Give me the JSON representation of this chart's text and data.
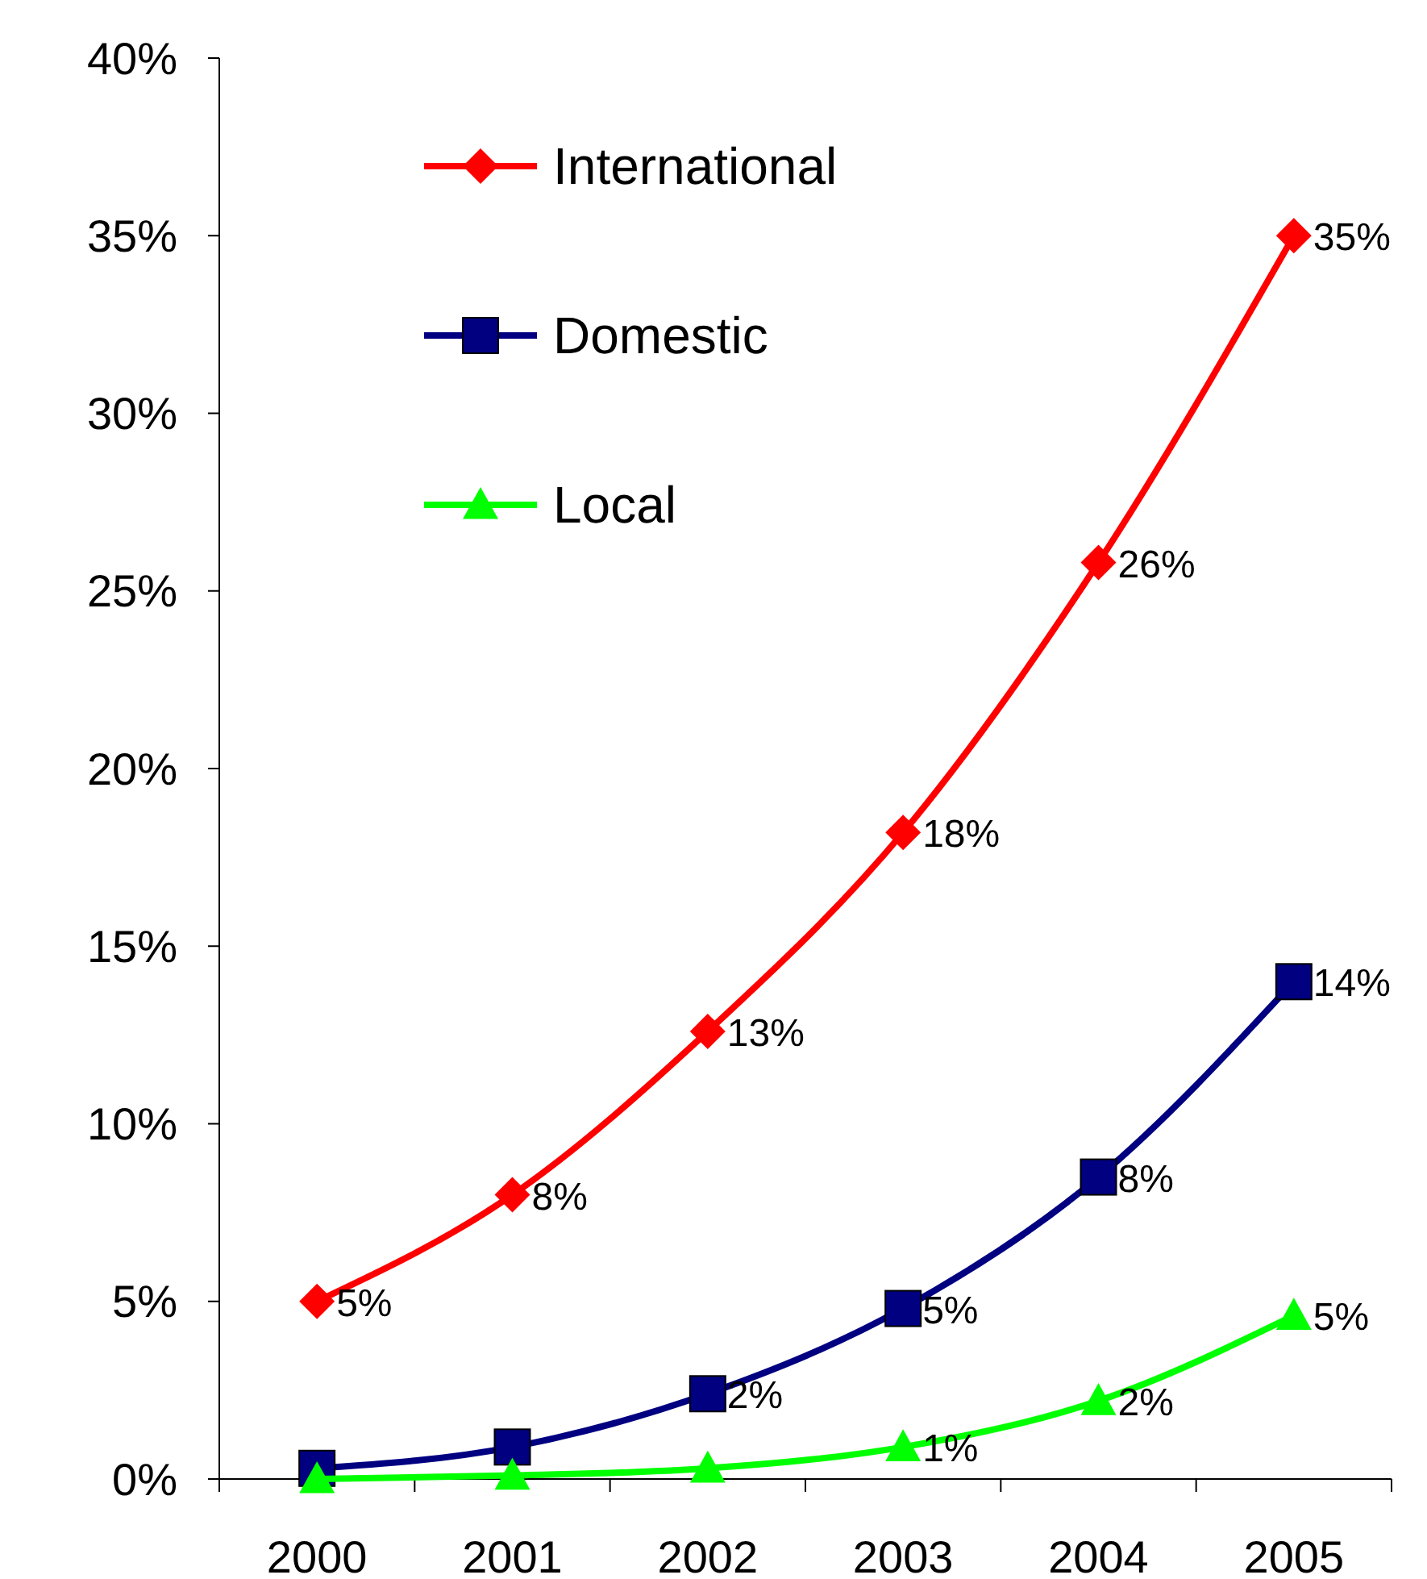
{
  "chart_data": {
    "type": "line",
    "categories": [
      "2000",
      "2001",
      "2002",
      "2003",
      "2004",
      "2005"
    ],
    "series": [
      {
        "name": "International",
        "color": "#ff0000",
        "marker": "diamond",
        "values": [
          5.0,
          8.0,
          12.6,
          18.2,
          25.8,
          35.0
        ],
        "value_labels": [
          "5%",
          "8%",
          "13%",
          "18%",
          "26%",
          "35%"
        ]
      },
      {
        "name": "Domestic",
        "color": "#000080",
        "marker": "square",
        "values": [
          0.3,
          0.9,
          2.4,
          4.8,
          8.5,
          14.0
        ],
        "value_labels": [
          null,
          null,
          "2%",
          "5%",
          "8%",
          "14%"
        ]
      },
      {
        "name": "Local",
        "color": "#00ff00",
        "marker": "triangle",
        "values": [
          0.0,
          0.1,
          0.3,
          0.9,
          2.2,
          4.6
        ],
        "value_labels": [
          null,
          null,
          null,
          "1%",
          "2%",
          "5%"
        ]
      }
    ],
    "ylim": [
      0,
      40
    ],
    "yticks": [
      {
        "value": 0,
        "label": "0%"
      },
      {
        "value": 5,
        "label": "5%"
      },
      {
        "value": 10,
        "label": "10%"
      },
      {
        "value": 15,
        "label": "15%"
      },
      {
        "value": 20,
        "label": "20%"
      },
      {
        "value": 25,
        "label": "25%"
      },
      {
        "value": 30,
        "label": "30%"
      },
      {
        "value": 35,
        "label": "35%"
      },
      {
        "value": 40,
        "label": "40%"
      }
    ],
    "grid": false,
    "legend": "top left",
    "line_style": "solid"
  }
}
